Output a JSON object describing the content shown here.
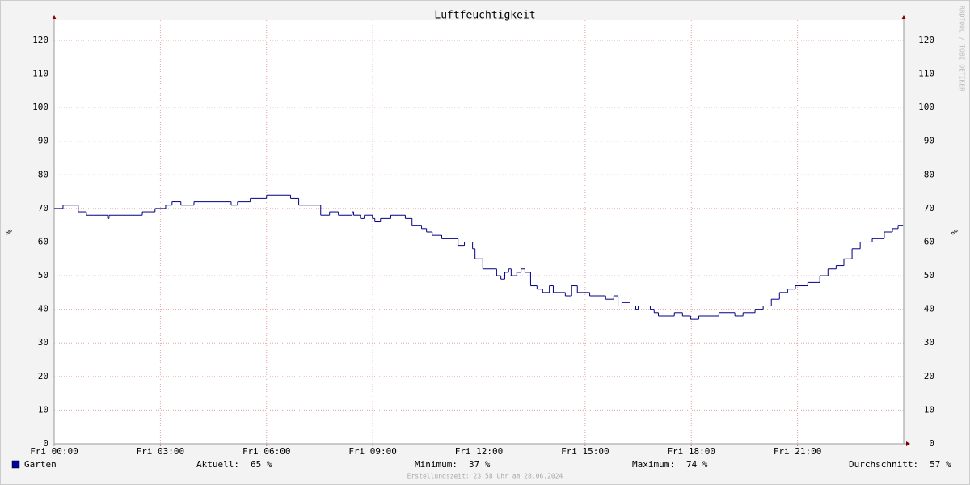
{
  "chart_data": {
    "type": "step-line",
    "title": "Luftfeuchtigkeit",
    "ylabel": "%",
    "watermark": "RRDTOOL / TOBI OETIKER",
    "footer": "Erstellungszeit: 23:58 Uhr am 28.06.2024",
    "xlim": [
      0,
      24
    ],
    "ylim": [
      0,
      126
    ],
    "xticks": [
      {
        "value": 0,
        "label": "Fri 00:00"
      },
      {
        "value": 3,
        "label": "Fri 03:00"
      },
      {
        "value": 6,
        "label": "Fri 06:00"
      },
      {
        "value": 9,
        "label": "Fri 09:00"
      },
      {
        "value": 12,
        "label": "Fri 12:00"
      },
      {
        "value": 15,
        "label": "Fri 15:00"
      },
      {
        "value": 18,
        "label": "Fri 18:00"
      },
      {
        "value": 21,
        "label": "Fri 21:00"
      }
    ],
    "yticks": [
      0,
      10,
      20,
      30,
      40,
      50,
      60,
      70,
      80,
      90,
      100,
      110,
      120
    ],
    "grid": true,
    "series": [
      {
        "name": "Garten",
        "color": "#000080",
        "x": [
          0,
          0.25,
          0.68,
          0.91,
          1.51,
          1.55,
          2.49,
          2.85,
          3.15,
          3.33,
          3.58,
          3.95,
          5.0,
          5.18,
          5.54,
          6.0,
          6.68,
          6.91,
          7.53,
          7.78,
          8.03,
          8.42,
          8.46,
          8.65,
          8.76,
          8.99,
          9.06,
          9.22,
          9.51,
          9.92,
          10.11,
          10.38,
          10.52,
          10.68,
          10.95,
          11.41,
          11.59,
          11.82,
          11.89,
          12.11,
          12.5,
          12.62,
          12.73,
          12.84,
          12.91,
          13.07,
          13.19,
          13.3,
          13.46,
          13.64,
          13.8,
          13.99,
          14.1,
          14.44,
          14.62,
          14.78,
          15.13,
          15.58,
          15.81,
          15.93,
          16.04,
          16.27,
          16.43,
          16.5,
          16.84,
          16.95,
          17.07,
          17.52,
          17.75,
          17.98,
          18.21,
          18.78,
          19.23,
          19.46,
          19.8,
          20.03,
          20.26,
          20.49,
          20.72,
          20.94,
          21.29,
          21.63,
          21.86,
          22.09,
          22.31,
          22.54,
          22.77,
          23.11,
          23.45,
          23.68,
          23.84,
          23.98
        ],
        "values": [
          70,
          71,
          69,
          68,
          67,
          68,
          69,
          70,
          71,
          72,
          71,
          72,
          71,
          72,
          73,
          74,
          73,
          71,
          68,
          69,
          68,
          69,
          68,
          67,
          68,
          67,
          66,
          67,
          68,
          67,
          65,
          64,
          63,
          62,
          61,
          59,
          60,
          58,
          55,
          52,
          50,
          49,
          51,
          52,
          50,
          51,
          52,
          51,
          47,
          46,
          45,
          47,
          45,
          44,
          47,
          45,
          44,
          43,
          44,
          41,
          42,
          41,
          40,
          41,
          40,
          39,
          38,
          39,
          38,
          37,
          38,
          39,
          38,
          39,
          40,
          41,
          43,
          45,
          46,
          47,
          48,
          50,
          52,
          53,
          55,
          58,
          60,
          61,
          63,
          64,
          65,
          65
        ]
      }
    ],
    "stats": [
      {
        "label": "Aktuell:",
        "value": 65,
        "value_label": "65 %"
      },
      {
        "label": "Minimum:",
        "value": 37,
        "value_label": "37 %"
      },
      {
        "label": "Maximum:",
        "value": 74,
        "value_label": "74 %"
      },
      {
        "label": "Durchschnitt:",
        "value": 57,
        "value_label": "57 %"
      }
    ]
  }
}
